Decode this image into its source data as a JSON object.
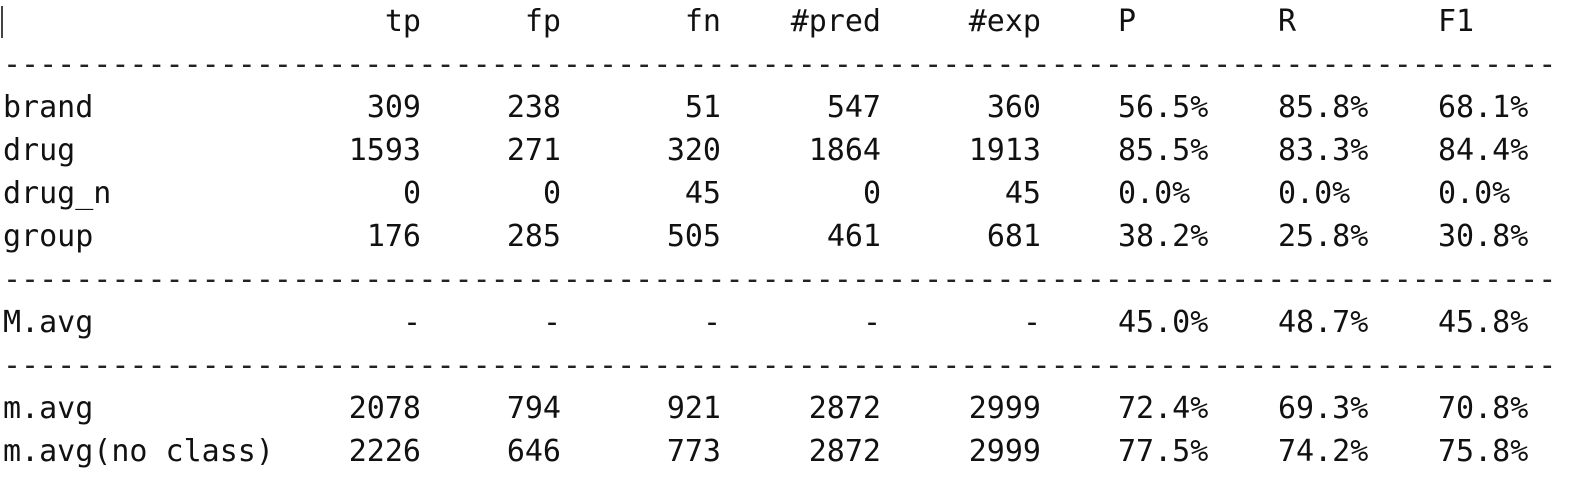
{
  "header": {
    "tp": "tp",
    "fp": "fp",
    "fn": "fn",
    "pred": "#pred",
    "exp": "#exp",
    "P": "P",
    "R": "R",
    "F1": "F1"
  },
  "separator": "-------------------------------------------------------------------------------------------",
  "class_rows": [
    {
      "label": "brand",
      "tp": "309",
      "fp": "238",
      "fn": "51",
      "pred": "547",
      "exp": "360",
      "P": "56.5%",
      "R": "85.8%",
      "F1": "68.1%"
    },
    {
      "label": "drug",
      "tp": "1593",
      "fp": "271",
      "fn": "320",
      "pred": "1864",
      "exp": "1913",
      "P": "85.5%",
      "R": "83.3%",
      "F1": "84.4%"
    },
    {
      "label": "drug_n",
      "tp": "0",
      "fp": "0",
      "fn": "45",
      "pred": "0",
      "exp": "45",
      "P": "0.0%",
      "R": "0.0%",
      "F1": "0.0%"
    },
    {
      "label": "group",
      "tp": "176",
      "fp": "285",
      "fn": "505",
      "pred": "461",
      "exp": "681",
      "P": "38.2%",
      "R": "25.8%",
      "F1": "30.8%"
    }
  ],
  "macro_row": {
    "label": "M.avg",
    "tp": "-",
    "fp": "-",
    "fn": "-",
    "pred": "-",
    "exp": "-",
    "P": "45.0%",
    "R": "48.7%",
    "F1": "45.8%"
  },
  "micro_rows": [
    {
      "label": "m.avg",
      "tp": "2078",
      "fp": "794",
      "fn": "921",
      "pred": "2872",
      "exp": "2999",
      "P": "72.4%",
      "R": "69.3%",
      "F1": "70.8%"
    },
    {
      "label": "m.avg(no class)",
      "tp": "2226",
      "fp": "646",
      "fn": "773",
      "pred": "2872",
      "exp": "2999",
      "P": "77.5%",
      "R": "74.2%",
      "F1": "75.8%"
    }
  ]
}
